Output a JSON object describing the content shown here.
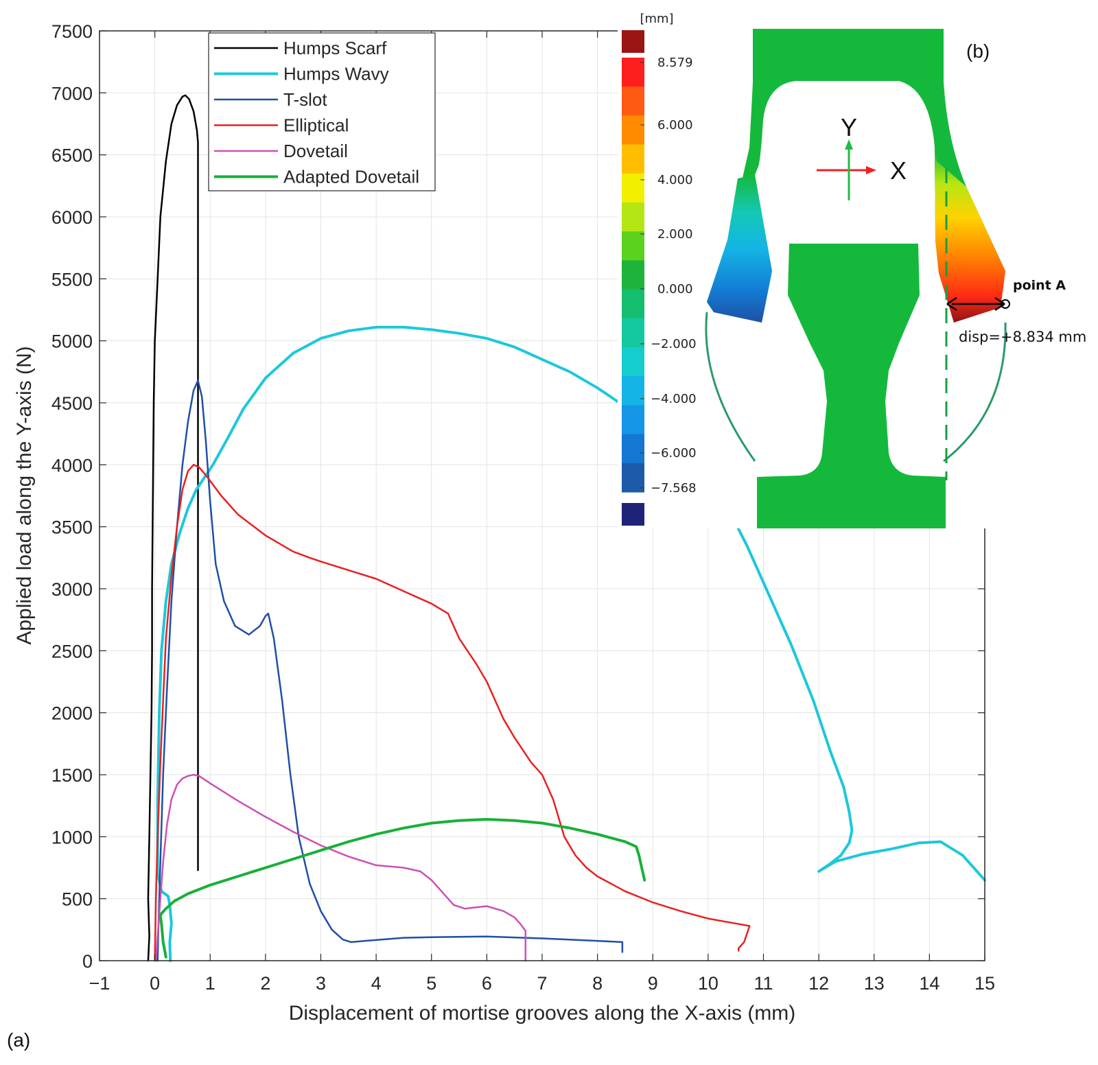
{
  "chart_data": {
    "type": "line",
    "xlabel": "Displacement of mortise grooves along the X-axis (mm)",
    "ylabel": "Applied load along the Y-axis (N)",
    "xlim": [
      -1,
      15
    ],
    "ylim": [
      0,
      7500
    ],
    "xticks": [
      -1,
      0,
      1,
      2,
      3,
      4,
      5,
      6,
      7,
      8,
      9,
      10,
      11,
      12,
      13,
      14,
      15
    ],
    "yticks": [
      0,
      500,
      1000,
      1500,
      2000,
      2500,
      3000,
      3500,
      4000,
      4500,
      5000,
      5500,
      6000,
      6500,
      7000,
      7500
    ],
    "xtick_labels": [
      "−1",
      "0",
      "1",
      "2",
      "3",
      "4",
      "5",
      "6",
      "7",
      "8",
      "9",
      "10",
      "11",
      "12",
      "13",
      "14",
      "15"
    ],
    "grid": true,
    "legend_position": "top-left",
    "series": [
      {
        "name": "Humps Scarf",
        "color": "#000000",
        "width": 2.5,
        "x": [
          -0.12,
          -0.1,
          -0.12,
          -0.1,
          -0.08,
          -0.06,
          -0.05,
          -0.05,
          -0.04,
          -0.03,
          -0.02,
          0.0,
          0.05,
          0.1,
          0.2,
          0.3,
          0.4,
          0.5,
          0.55,
          0.62,
          0.7,
          0.76,
          0.78,
          0.78,
          0.78,
          0.78
        ],
        "y": [
          0,
          200,
          500,
          1000,
          1500,
          2000,
          2500,
          3000,
          3500,
          4000,
          4500,
          5000,
          5500,
          6000,
          6450,
          6750,
          6900,
          6970,
          6980,
          6950,
          6850,
          6700,
          6600,
          5000,
          2000,
          730
        ]
      },
      {
        "name": "Humps Wavy",
        "color": "#1cc8dc",
        "width": 4,
        "x": [
          0.28,
          0.27,
          0.3,
          0.27,
          0.24,
          0.18,
          0.12,
          0.05,
          0.05,
          0.08,
          0.12,
          0.2,
          0.3,
          0.45,
          0.6,
          0.75,
          0.9,
          1.05,
          1.3,
          1.6,
          2.0,
          2.5,
          3.0,
          3.5,
          4.0,
          4.5,
          5.0,
          5.5,
          6.0,
          6.5,
          7.0,
          7.5,
          8.0,
          8.5,
          9.0,
          9.5,
          9.8,
          10.3,
          10.7,
          11.1,
          11.5,
          11.9,
          12.2,
          12.45,
          12.55,
          12.6,
          12.55,
          12.4,
          12.2,
          12.0,
          12.3,
          12.8,
          13.3,
          13.8,
          14.2,
          14.6,
          15.0
        ],
        "y": [
          0,
          150,
          300,
          450,
          520,
          540,
          560,
          700,
          1300,
          2000,
          2500,
          2900,
          3200,
          3450,
          3650,
          3800,
          3900,
          4000,
          4200,
          4450,
          4700,
          4900,
          5020,
          5080,
          5110,
          5110,
          5090,
          5060,
          5020,
          4950,
          4850,
          4750,
          4620,
          4470,
          4300,
          4100,
          3950,
          3700,
          3350,
          2950,
          2550,
          2100,
          1700,
          1400,
          1200,
          1050,
          950,
          850,
          780,
          720,
          800,
          860,
          900,
          950,
          960,
          850,
          650
        ]
      },
      {
        "name": "T-slot",
        "color": "#1f4fa5",
        "width": 2.5,
        "x": [
          0.05,
          0.06,
          0.1,
          0.15,
          0.22,
          0.3,
          0.4,
          0.5,
          0.6,
          0.7,
          0.78,
          0.85,
          0.92,
          1.0,
          1.1,
          1.25,
          1.45,
          1.7,
          1.9,
          2.0,
          2.05,
          2.15,
          2.3,
          2.45,
          2.6,
          2.8,
          3.0,
          3.2,
          3.4,
          3.55,
          3.8,
          4.5,
          5.0,
          6.0,
          7.0,
          8.0,
          8.45,
          8.45
        ],
        "y": [
          0,
          200,
          800,
          1500,
          2200,
          2900,
          3500,
          4000,
          4350,
          4600,
          4680,
          4550,
          4200,
          3700,
          3200,
          2900,
          2700,
          2630,
          2700,
          2780,
          2800,
          2600,
          2100,
          1500,
          1000,
          620,
          400,
          250,
          170,
          150,
          160,
          185,
          190,
          195,
          180,
          160,
          150,
          70
        ]
      },
      {
        "name": "Elliptical",
        "color": "#e82020",
        "width": 2.5,
        "x": [
          0.0,
          0.02,
          0.05,
          0.1,
          0.15,
          0.2,
          0.3,
          0.4,
          0.5,
          0.6,
          0.7,
          0.8,
          0.95,
          1.2,
          1.5,
          2.0,
          2.5,
          2.8,
          3.0,
          3.5,
          4.0,
          4.5,
          5.0,
          5.3,
          5.5,
          5.8,
          6.0,
          6.3,
          6.5,
          6.8,
          7.0,
          7.2,
          7.4,
          7.6,
          7.8,
          8.0,
          8.5,
          9.0,
          9.5,
          10.0,
          10.5,
          10.75,
          10.65,
          10.55,
          10.55
        ],
        "y": [
          0,
          500,
          1000,
          1600,
          2100,
          2600,
          3100,
          3500,
          3800,
          3950,
          4000,
          3980,
          3900,
          3750,
          3600,
          3430,
          3300,
          3250,
          3220,
          3150,
          3080,
          2980,
          2880,
          2800,
          2600,
          2400,
          2250,
          1950,
          1800,
          1600,
          1500,
          1300,
          1000,
          850,
          750,
          680,
          560,
          470,
          400,
          340,
          300,
          280,
          150,
          100,
          80
        ]
      },
      {
        "name": "Dovetail",
        "color": "#cc50b4",
        "width": 2.5,
        "x": [
          0.02,
          0.05,
          0.1,
          0.15,
          0.22,
          0.3,
          0.4,
          0.5,
          0.6,
          0.7,
          0.8,
          1.0,
          1.5,
          2.0,
          2.5,
          3.0,
          3.5,
          4.0,
          4.5,
          4.8,
          5.0,
          5.2,
          5.4,
          5.6,
          6.0,
          6.3,
          6.5,
          6.6,
          6.7,
          6.7
        ],
        "y": [
          0,
          200,
          500,
          800,
          1100,
          1300,
          1420,
          1470,
          1490,
          1500,
          1490,
          1430,
          1290,
          1160,
          1040,
          930,
          840,
          770,
          750,
          720,
          650,
          550,
          450,
          420,
          440,
          400,
          350,
          300,
          240,
          0
        ]
      },
      {
        "name": "Adapted Dovetail",
        "color": "#18b038",
        "width": 4,
        "x": [
          0.2,
          0.15,
          0.12,
          0.1,
          0.12,
          0.2,
          0.35,
          0.6,
          1.0,
          1.5,
          2.0,
          2.5,
          3.0,
          3.5,
          4.0,
          4.5,
          5.0,
          5.5,
          6.0,
          6.5,
          7.0,
          7.5,
          8.0,
          8.5,
          8.7,
          8.75,
          8.8,
          8.85
        ],
        "y": [
          30,
          150,
          300,
          360,
          380,
          420,
          480,
          540,
          610,
          680,
          750,
          820,
          890,
          960,
          1020,
          1070,
          1110,
          1130,
          1140,
          1130,
          1110,
          1070,
          1020,
          960,
          920,
          850,
          750,
          650
        ]
      }
    ]
  },
  "colorbar": {
    "unit": "[mm]",
    "labels": [
      "8.579",
      "6.000",
      "4.000",
      "2.000",
      "0.000",
      "−2.000",
      "−4.000",
      "−6.000",
      "−7.568"
    ],
    "colors": [
      "#ff1e1e",
      "#ff5a14",
      "#ff8c00",
      "#ffbf00",
      "#f2f000",
      "#b4e614",
      "#5ad21e",
      "#1eb43c",
      "#14be6e",
      "#14c8a0",
      "#14cdcd",
      "#14b4e6",
      "#1496e6",
      "#1478d2",
      "#1e5aaa"
    ],
    "over_color": "#9b1414",
    "under_color": "#1e2378"
  },
  "panel_labels": {
    "a": "(a)",
    "b": "(b)"
  },
  "inset": {
    "y_axis_label": "Y",
    "x_axis_label": "X",
    "point_label": "point A",
    "disp_label": "disp=+8.834 mm"
  }
}
